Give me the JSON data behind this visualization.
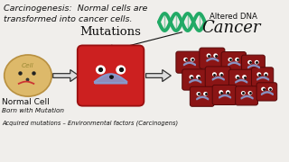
{
  "bg_color": "#f0eeeb",
  "title_text": "Carcinogenesis:  Normal cells are\ntransformed into cancer cells.",
  "title_color": "#111111",
  "title_fontsize": 6.8,
  "mutations_label": "Mutations",
  "cancer_label": "Cancer",
  "normal_cell_label": "Normal Cell",
  "bottom_line1": "Born with Mutation",
  "bottom_line2": "Acquired mutations – Environmental factors (Carcinogens)",
  "altered_dna_label": "Altered DNA",
  "dna_color": "#22aa66",
  "normal_cell_color": "#ddb96a",
  "normal_cell_outline": "#b89040",
  "mutated_cell_color": "#cc2020",
  "mutated_cell_outline": "#991010",
  "cancer_cell_color": "#8b1515",
  "cancer_cell_outline": "#550808",
  "smile_color": "#8899cc",
  "arrow_body_color": "#dddddd",
  "arrow_edge_color": "#333333",
  "label_color": "#111111",
  "dna_line_color": "#229955"
}
